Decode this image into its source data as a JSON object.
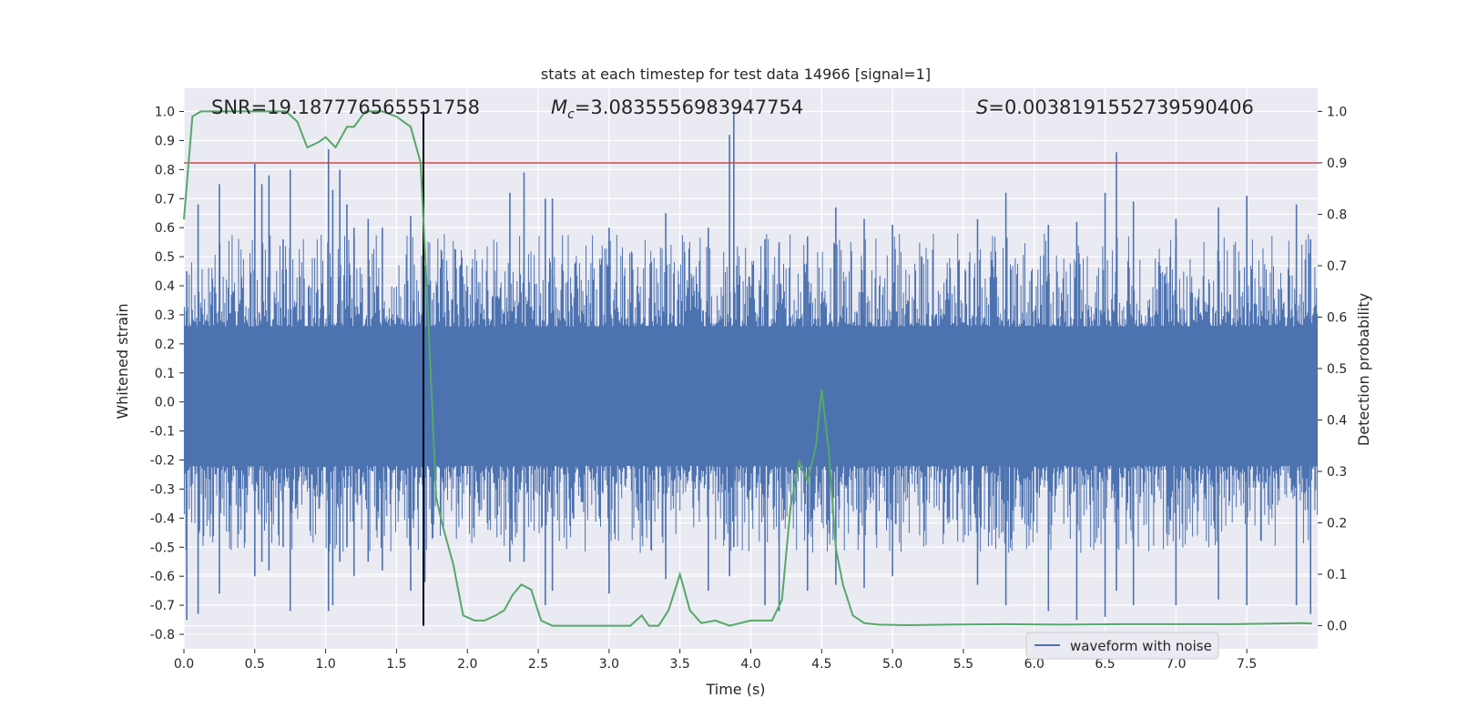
{
  "chart_data": {
    "type": "line",
    "title": "stats at each timestep for test data 14966 [signal=1]",
    "xlabel": "Time (s)",
    "ylabel_left": "Whitened strain",
    "ylabel_right": "Detection probability",
    "xlim": [
      0,
      8
    ],
    "ylim_left": [
      -0.85,
      1.08
    ],
    "ylim_right": [
      -0.045,
      1.045
    ],
    "x_ticks": [
      "0.0",
      "0.5",
      "1.0",
      "1.5",
      "2.0",
      "2.5",
      "3.0",
      "3.5",
      "4.0",
      "4.5",
      "5.0",
      "5.5",
      "6.0",
      "6.5",
      "7.0",
      "7.5"
    ],
    "y_ticks_left": [
      "-0.8",
      "-0.7",
      "-0.6",
      "-0.5",
      "-0.4",
      "-0.3",
      "-0.2",
      "-0.1",
      "0.0",
      "0.1",
      "0.2",
      "0.3",
      "0.4",
      "0.5",
      "0.6",
      "0.7",
      "0.8",
      "0.9",
      "1.0"
    ],
    "y_ticks_right": [
      "0.0",
      "0.1",
      "0.2",
      "0.3",
      "0.4",
      "0.5",
      "0.6",
      "0.7",
      "0.8",
      "0.9",
      "1.0"
    ],
    "annotations": {
      "snr": "SNR=19.187776565551758",
      "mc_symbol": "M",
      "mc_sub": "c",
      "mc_value": "=3.0835556983947754",
      "s_symbol": "S",
      "s_value": "=0.0038191552739590406"
    },
    "threshold": 0.9,
    "event_time": 1.69,
    "legend": {
      "label": "waveform with noise",
      "placement": "lower-right"
    },
    "grid": true,
    "colors": {
      "background": "#eaeaf2",
      "strain": "#4c72b0",
      "probability": "#55a868",
      "threshold": "#c44e52",
      "event_line": "#000000"
    },
    "series": [
      {
        "name": "waveform with noise",
        "envelope_note": "dense noise band",
        "spike_times": [
          0.02,
          0.1,
          0.25,
          0.5,
          0.55,
          0.6,
          0.7,
          0.75,
          1.02,
          1.05,
          1.1,
          1.15,
          1.2,
          1.3,
          1.4,
          1.6,
          1.7,
          2.3,
          2.4,
          2.55,
          2.6,
          3.0,
          3.4,
          3.7,
          3.85,
          3.88,
          4.1,
          4.2,
          4.4,
          4.6,
          4.8,
          5.0,
          5.6,
          5.8,
          6.1,
          6.3,
          6.5,
          6.58,
          6.7,
          7.0,
          7.3,
          7.5,
          7.85,
          7.95
        ],
        "spike_highs": [
          0.45,
          0.68,
          0.75,
          0.82,
          0.75,
          0.78,
          0.56,
          0.8,
          0.87,
          0.73,
          0.8,
          0.68,
          0.6,
          0.63,
          0.6,
          0.64,
          0.47,
          0.72,
          0.79,
          0.7,
          0.7,
          0.6,
          0.65,
          0.6,
          0.92,
          1.0,
          0.56,
          0.55,
          0.57,
          0.67,
          0.63,
          0.61,
          0.63,
          0.72,
          0.61,
          0.62,
          0.72,
          0.86,
          0.69,
          0.63,
          0.67,
          0.71,
          0.68,
          0.56
        ],
        "spike_lows": [
          -0.75,
          -0.73,
          -0.66,
          -0.6,
          -0.55,
          -0.58,
          -0.5,
          -0.72,
          -0.72,
          -0.7,
          -0.55,
          -0.5,
          -0.6,
          -0.55,
          -0.58,
          -0.65,
          -0.62,
          -0.55,
          -0.55,
          -0.7,
          -0.65,
          -0.66,
          -0.61,
          -0.65,
          -0.6,
          -0.5,
          -0.7,
          -0.72,
          -0.65,
          -0.63,
          -0.64,
          -0.6,
          -0.63,
          -0.7,
          -0.72,
          -0.75,
          -0.74,
          -0.65,
          -0.7,
          -0.7,
          -0.68,
          -0.7,
          -0.7,
          -0.73
        ]
      },
      {
        "name": "detection probability",
        "x": [
          0.0,
          0.06,
          0.12,
          0.2,
          0.3,
          0.45,
          0.6,
          0.72,
          0.8,
          0.87,
          0.95,
          1.0,
          1.07,
          1.15,
          1.2,
          1.28,
          1.33,
          1.4,
          1.5,
          1.6,
          1.67,
          1.72,
          1.78,
          1.82,
          1.9,
          1.97,
          2.05,
          2.12,
          2.2,
          2.26,
          2.32,
          2.38,
          2.45,
          2.52,
          2.6,
          2.7,
          2.9,
          3.05,
          3.15,
          3.23,
          3.28,
          3.35,
          3.42,
          3.5,
          3.57,
          3.65,
          3.75,
          3.85,
          4.0,
          4.15,
          4.22,
          4.28,
          4.34,
          4.4,
          4.46,
          4.5,
          4.55,
          4.6,
          4.65,
          4.72,
          4.8,
          4.9,
          5.1,
          5.4,
          5.8,
          6.2,
          6.6,
          7.0,
          7.4,
          7.9,
          7.96
        ],
        "y": [
          0.79,
          0.99,
          1.0,
          1.0,
          1.0,
          1.0,
          1.0,
          1.0,
          0.98,
          0.93,
          0.94,
          0.95,
          0.93,
          0.97,
          0.97,
          1.0,
          1.0,
          1.0,
          0.99,
          0.97,
          0.9,
          0.62,
          0.25,
          0.2,
          0.12,
          0.02,
          0.01,
          0.01,
          0.02,
          0.03,
          0.06,
          0.08,
          0.07,
          0.01,
          0.0,
          0.0,
          0.0,
          0.0,
          0.0,
          0.02,
          0.0,
          0.0,
          0.03,
          0.1,
          0.03,
          0.005,
          0.01,
          0.0,
          0.01,
          0.01,
          0.05,
          0.23,
          0.32,
          0.28,
          0.35,
          0.46,
          0.34,
          0.15,
          0.08,
          0.02,
          0.005,
          0.002,
          0.001,
          0.002,
          0.003,
          0.002,
          0.003,
          0.003,
          0.003,
          0.005,
          0.004
        ]
      }
    ]
  }
}
